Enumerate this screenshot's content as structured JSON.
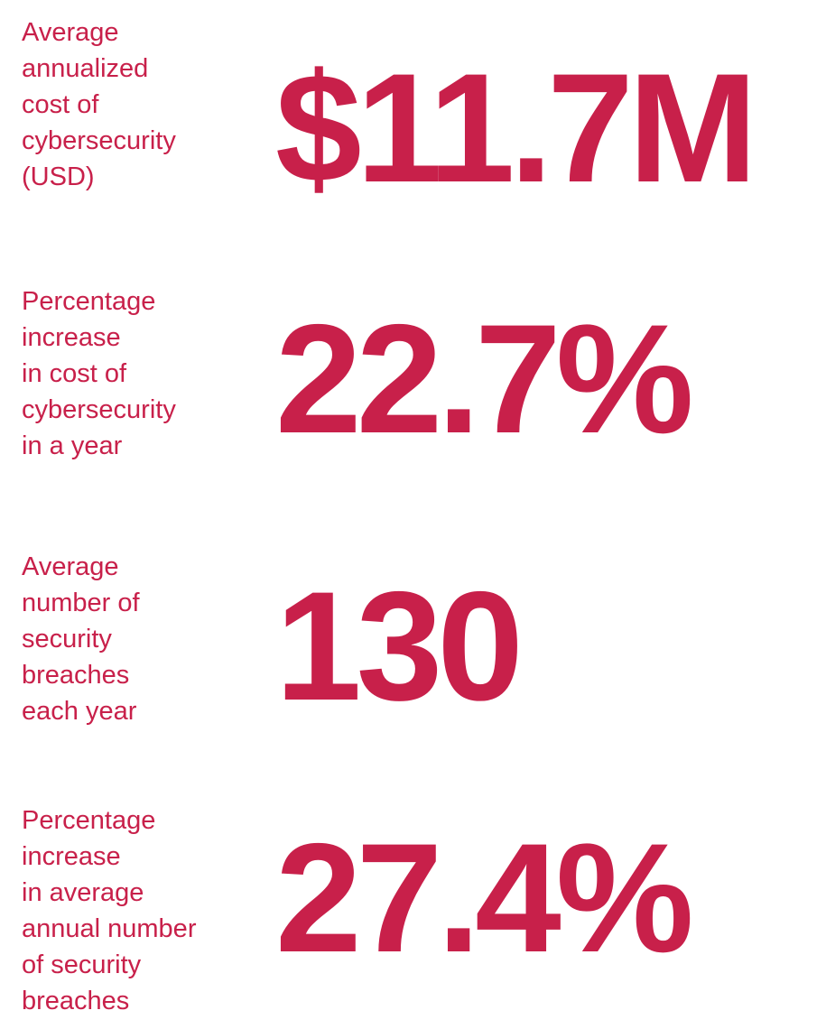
{
  "colors": {
    "accent": "#c8204a",
    "background": "#ffffff"
  },
  "stats": [
    {
      "label": "Average\nannualized\ncost of\ncybersecurity\n(USD)",
      "value": "$11.7M"
    },
    {
      "label": "Percentage\nincrease\nin cost of\ncybersecurity\nin a year",
      "value": "22.7%"
    },
    {
      "label": "Average\nnumber of\nsecurity\nbreaches\neach year",
      "value": "130"
    },
    {
      "label": "Percentage\nincrease\nin average\nannual number\nof security\nbreaches",
      "value": "27.4%"
    }
  ]
}
